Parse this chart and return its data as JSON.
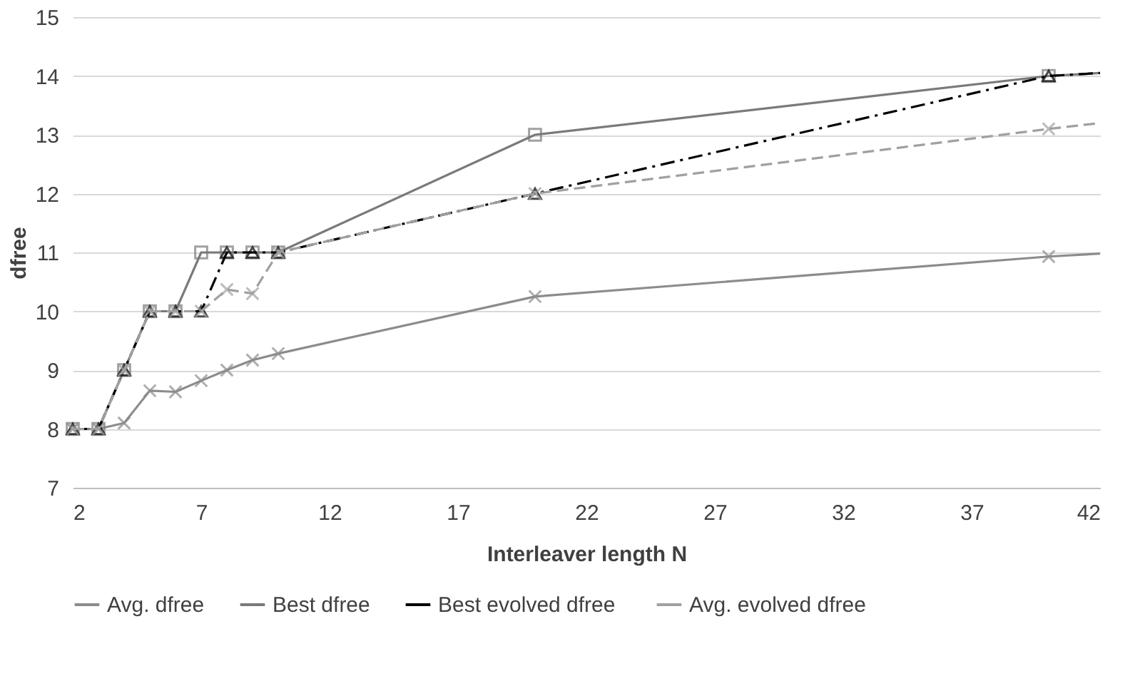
{
  "chart_data": {
    "type": "line",
    "xlabel": "Interleaver length N",
    "ylabel": "dfree",
    "x": [
      2,
      3,
      4,
      5,
      6,
      7,
      8,
      9,
      10,
      20,
      40,
      42
    ],
    "series": [
      {
        "name": "Avg. dfree",
        "color": "#8c8c8c",
        "marker": "cross",
        "line_style": "solid",
        "values": [
          8,
          8,
          8.1,
          8.65,
          8.63,
          8.82,
          9.0,
          9.17,
          9.28,
          10.25,
          10.93,
          10.98
        ]
      },
      {
        "name": "Best dfree",
        "color": "#7a7a7a",
        "marker": "square",
        "line_style": "solid",
        "values": [
          8,
          8,
          9,
          10,
          10,
          11,
          11,
          11,
          11,
          13,
          14,
          14.05
        ]
      },
      {
        "name": "Best evolved  dfree",
        "color": "#000000",
        "marker": "triangle",
        "line_style": "dashdot",
        "values": [
          8,
          8,
          9,
          10,
          10,
          10,
          11,
          11,
          11,
          12,
          14,
          14.05
        ]
      },
      {
        "name": "Avg. evolved  dfree",
        "color": "#a0a0a0",
        "marker": "cross",
        "line_style": "dashed",
        "values": [
          8,
          8,
          9,
          10,
          10,
          10,
          10.37,
          10.3,
          11,
          12,
          13.1,
          13.2
        ]
      }
    ],
    "xlim": [
      2,
      42
    ],
    "xticks": [
      2,
      7,
      12,
      17,
      22,
      27,
      32,
      37,
      42
    ],
    "ylim": [
      7,
      15
    ],
    "yticks": [
      7,
      8,
      9,
      10,
      11,
      12,
      13,
      14,
      15
    ],
    "grid": "y",
    "legend": "bottom"
  }
}
